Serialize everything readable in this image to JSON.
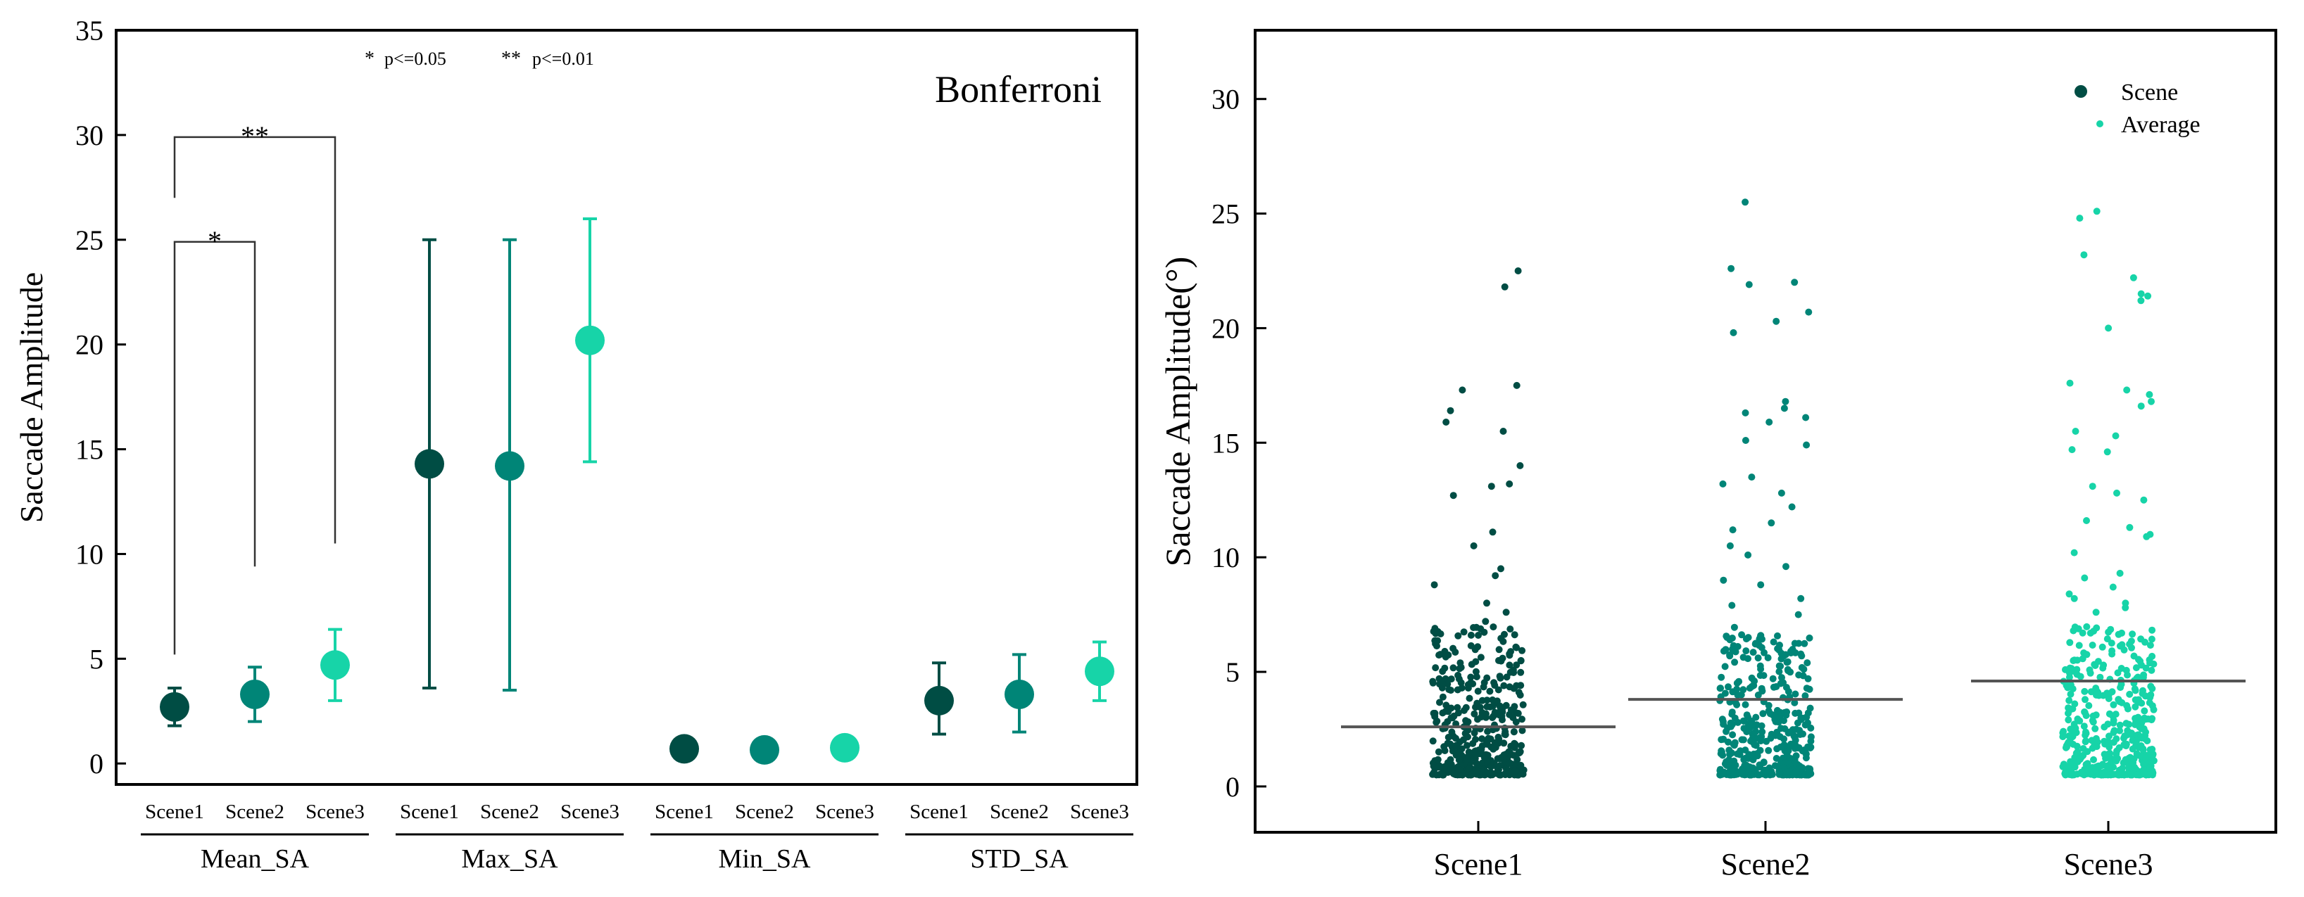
{
  "colors": {
    "scene1": "#004d44",
    "scene2": "#008577",
    "scene3": "#17d4a8",
    "axis": "#000000",
    "avg_line": "#555555"
  },
  "chart_data": [
    {
      "type": "scatter",
      "title": "Bonferroni",
      "ylabel": "Saccade Amplitude",
      "ylim": [
        -1,
        35
      ],
      "yticks": [
        0,
        5,
        10,
        15,
        20,
        25,
        30,
        35
      ],
      "ytick_labels": [
        "0",
        "5",
        "10",
        "15",
        "20",
        "25",
        "30",
        "35"
      ],
      "significance_legend": [
        {
          "symbol": "*",
          "text": "p<=0.05"
        },
        {
          "symbol": "**",
          "text": "p<=0.01"
        }
      ],
      "groups": [
        {
          "name": "Mean_SA",
          "scenes": [
            "Scene1",
            "Scene2",
            "Scene3"
          ],
          "points": [
            {
              "scene": "Scene1",
              "mean": 2.7,
              "low": 1.8,
              "high": 3.6
            },
            {
              "scene": "Scene2",
              "mean": 3.3,
              "low": 2.0,
              "high": 4.6
            },
            {
              "scene": "Scene3",
              "mean": 4.7,
              "low": 3.0,
              "high": 6.4
            }
          ]
        },
        {
          "name": "Max_SA",
          "scenes": [
            "Scene1",
            "Scene2",
            "Scene3"
          ],
          "points": [
            {
              "scene": "Scene1",
              "mean": 14.3,
              "low": 3.6,
              "high": 25.0
            },
            {
              "scene": "Scene2",
              "mean": 14.2,
              "low": 3.5,
              "high": 25.0
            },
            {
              "scene": "Scene3",
              "mean": 20.2,
              "low": 14.4,
              "high": 26.0
            }
          ]
        },
        {
          "name": "Min_SA",
          "scenes": [
            "Scene1",
            "Scene2",
            "Scene3"
          ],
          "points": [
            {
              "scene": "Scene1",
              "mean": 0.7,
              "low": 0.7,
              "high": 0.7
            },
            {
              "scene": "Scene2",
              "mean": 0.65,
              "low": 0.65,
              "high": 0.65
            },
            {
              "scene": "Scene3",
              "mean": 0.75,
              "low": 0.75,
              "high": 0.75
            }
          ]
        },
        {
          "name": "STD_SA",
          "scenes": [
            "Scene1",
            "Scene2",
            "Scene3"
          ],
          "points": [
            {
              "scene": "Scene1",
              "mean": 3.0,
              "low": 1.4,
              "high": 4.8
            },
            {
              "scene": "Scene2",
              "mean": 3.3,
              "low": 1.5,
              "high": 5.2
            },
            {
              "scene": "Scene3",
              "mean": 4.4,
              "low": 3.0,
              "high": 5.8
            }
          ]
        }
      ],
      "comparisons": [
        {
          "group": "Mean_SA",
          "from": "Scene1",
          "to": "Scene2",
          "label": "*",
          "level": 24.9,
          "from_y": 5.2,
          "to_y": 9.4
        },
        {
          "group": "Mean_SA",
          "from": "Scene1",
          "to": "Scene3",
          "label": "**",
          "level": 29.9,
          "from_y": 27.0,
          "to_y": 10.5
        }
      ]
    },
    {
      "type": "scatter",
      "ylabel": "Saccade Amplitude(°)",
      "ylim": [
        -2,
        33
      ],
      "yticks": [
        0,
        5,
        10,
        15,
        20,
        25,
        30
      ],
      "ytick_labels": [
        "0",
        "5",
        "10",
        "15",
        "20",
        "25",
        "30"
      ],
      "categories": [
        "Scene1",
        "Scene2",
        "Scene3"
      ],
      "averages": [
        2.6,
        3.8,
        4.6
      ],
      "legend": [
        {
          "label": "Scene",
          "marker": "dot-large"
        },
        {
          "label": "Average",
          "marker": "dot-small"
        }
      ],
      "series": [
        {
          "name": "Scene1",
          "n": 420,
          "max": 22.5,
          "outliers": [
            22.5,
            21.8,
            17.5,
            17.3,
            16.4,
            15.9,
            15.5,
            14.0,
            13.2,
            13.1,
            12.7,
            11.1,
            10.5,
            9.5,
            9.2,
            8.8,
            8.0,
            7.6,
            7.2,
            6.6
          ]
        },
        {
          "name": "Scene2",
          "n": 420,
          "max": 25.5,
          "outliers": [
            25.5,
            22.6,
            22.0,
            21.9,
            20.7,
            20.3,
            19.8,
            16.8,
            16.5,
            16.3,
            16.1,
            15.9,
            15.1,
            14.9,
            13.5,
            13.2,
            12.8,
            12.2,
            11.5,
            11.2,
            10.5,
            10.1,
            9.6,
            9.0,
            8.8,
            8.2,
            7.9,
            7.5
          ]
        },
        {
          "name": "Scene3",
          "n": 420,
          "max": 25.1,
          "outliers": [
            25.1,
            24.8,
            23.2,
            22.2,
            21.5,
            21.4,
            21.2,
            20.0,
            17.6,
            17.3,
            17.1,
            16.8,
            16.6,
            15.5,
            15.3,
            14.7,
            14.6,
            13.1,
            12.8,
            12.5,
            11.6,
            11.3,
            11.0,
            10.9,
            10.2,
            9.3,
            9.1,
            8.7,
            8.4,
            8.2,
            8.0,
            7.8,
            7.6
          ]
        }
      ]
    }
  ]
}
